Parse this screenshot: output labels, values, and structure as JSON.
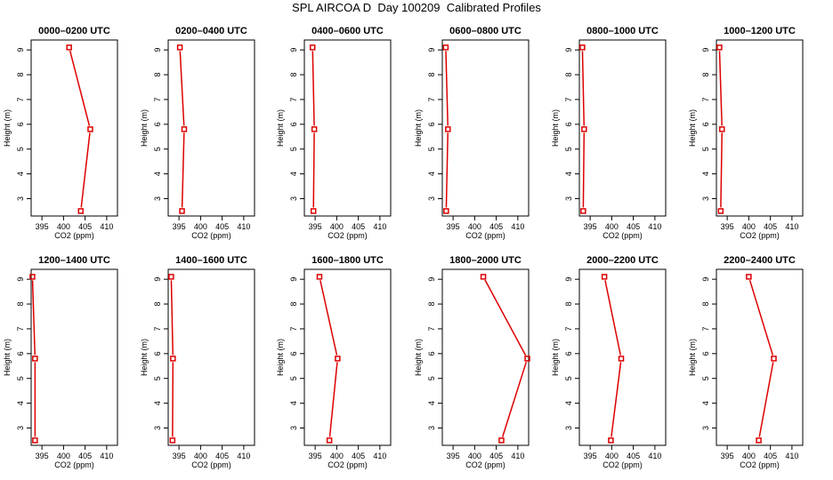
{
  "title": "SPL AIRCOA D  Day 100209  Calibrated Profiles",
  "colors": {
    "series": "#dd0000",
    "axis": "#000000"
  },
  "chart_data": [
    {
      "type": "line",
      "title": "0000–0200 UTC",
      "xlabel": "CO2 (ppm)",
      "ylabel": "Height (m)",
      "xlim": [
        392.5,
        412.5
      ],
      "ylim": [
        2.3,
        9.4
      ],
      "xticks": [
        395,
        400,
        405,
        410
      ],
      "yticks": [
        3,
        4,
        5,
        6,
        7,
        8,
        9
      ],
      "x": [
        401.3,
        406.2,
        404.0
      ],
      "y": [
        9.1,
        5.8,
        2.5
      ]
    },
    {
      "type": "line",
      "title": "0200–0400 UTC",
      "xlabel": "CO2 (ppm)",
      "ylabel": "Height (m)",
      "xlim": [
        392.5,
        412.5
      ],
      "ylim": [
        2.3,
        9.4
      ],
      "xticks": [
        395,
        400,
        405,
        410
      ],
      "yticks": [
        3,
        4,
        5,
        6,
        7,
        8,
        9
      ],
      "x": [
        395.2,
        396.2,
        395.7
      ],
      "y": [
        9.1,
        5.8,
        2.5
      ]
    },
    {
      "type": "line",
      "title": "0400–0600 UTC",
      "xlabel": "CO2 (ppm)",
      "ylabel": "Height (m)",
      "xlim": [
        392.5,
        412.5
      ],
      "ylim": [
        2.3,
        9.4
      ],
      "xticks": [
        395,
        400,
        405,
        410
      ],
      "yticks": [
        3,
        4,
        5,
        6,
        7,
        8,
        9
      ],
      "x": [
        394.4,
        394.8,
        394.6
      ],
      "y": [
        9.1,
        5.8,
        2.5
      ]
    },
    {
      "type": "line",
      "title": "0600–0800 UTC",
      "xlabel": "CO2 (ppm)",
      "ylabel": "Height (m)",
      "xlim": [
        392.5,
        412.5
      ],
      "ylim": [
        2.3,
        9.4
      ],
      "xticks": [
        395,
        400,
        405,
        410
      ],
      "yticks": [
        3,
        4,
        5,
        6,
        7,
        8,
        9
      ],
      "x": [
        393.3,
        393.8,
        393.4
      ],
      "y": [
        9.1,
        5.8,
        2.5
      ]
    },
    {
      "type": "line",
      "title": "0800–1000 UTC",
      "xlabel": "CO2 (ppm)",
      "ylabel": "Height (m)",
      "xlim": [
        392.5,
        412.5
      ],
      "ylim": [
        2.3,
        9.4
      ],
      "xticks": [
        395,
        400,
        405,
        410
      ],
      "yticks": [
        3,
        4,
        5,
        6,
        7,
        8,
        9
      ],
      "x": [
        393.2,
        393.6,
        393.4
      ],
      "y": [
        9.1,
        5.8,
        2.5
      ]
    },
    {
      "type": "line",
      "title": "1000–1200 UTC",
      "xlabel": "CO2 (ppm)",
      "ylabel": "Height (m)",
      "xlim": [
        392.5,
        412.5
      ],
      "ylim": [
        2.3,
        9.4
      ],
      "xticks": [
        395,
        400,
        405,
        410
      ],
      "yticks": [
        3,
        4,
        5,
        6,
        7,
        8,
        9
      ],
      "x": [
        393.2,
        393.8,
        393.5
      ],
      "y": [
        9.1,
        5.8,
        2.5
      ]
    },
    {
      "type": "line",
      "title": "1200–1400 UTC",
      "xlabel": "CO2 (ppm)",
      "ylabel": "Height (m)",
      "xlim": [
        392.5,
        412.5
      ],
      "ylim": [
        2.3,
        9.4
      ],
      "xticks": [
        395,
        400,
        405,
        410
      ],
      "yticks": [
        3,
        4,
        5,
        6,
        7,
        8,
        9
      ],
      "x": [
        392.8,
        393.4,
        393.4
      ],
      "y": [
        9.1,
        5.8,
        2.5
      ]
    },
    {
      "type": "line",
      "title": "1400–1600 UTC",
      "xlabel": "CO2 (ppm)",
      "ylabel": "Height (m)",
      "xlim": [
        392.5,
        412.5
      ],
      "ylim": [
        2.3,
        9.4
      ],
      "xticks": [
        395,
        400,
        405,
        410
      ],
      "yticks": [
        3,
        4,
        5,
        6,
        7,
        8,
        9
      ],
      "x": [
        393.2,
        393.6,
        393.5
      ],
      "y": [
        9.1,
        5.8,
        2.5
      ]
    },
    {
      "type": "line",
      "title": "1600–1800 UTC",
      "xlabel": "CO2 (ppm)",
      "ylabel": "Height (m)",
      "xlim": [
        392.5,
        412.5
      ],
      "ylim": [
        2.3,
        9.4
      ],
      "xticks": [
        395,
        400,
        405,
        410
      ],
      "yticks": [
        3,
        4,
        5,
        6,
        7,
        8,
        9
      ],
      "x": [
        396.0,
        400.2,
        398.3
      ],
      "y": [
        9.1,
        5.8,
        2.5
      ]
    },
    {
      "type": "line",
      "title": "1800–2000 UTC",
      "xlabel": "CO2 (ppm)",
      "ylabel": "Height (m)",
      "xlim": [
        392.5,
        412.5
      ],
      "ylim": [
        2.3,
        9.4
      ],
      "xticks": [
        395,
        400,
        405,
        410
      ],
      "yticks": [
        3,
        4,
        5,
        6,
        7,
        8,
        9
      ],
      "x": [
        402.0,
        412.2,
        406.2
      ],
      "y": [
        9.1,
        5.8,
        2.5
      ]
    },
    {
      "type": "line",
      "title": "2000–2200 UTC",
      "xlabel": "CO2 (ppm)",
      "ylabel": "Height (m)",
      "xlim": [
        392.5,
        412.5
      ],
      "ylim": [
        2.3,
        9.4
      ],
      "xticks": [
        395,
        400,
        405,
        410
      ],
      "yticks": [
        3,
        4,
        5,
        6,
        7,
        8,
        9
      ],
      "x": [
        398.3,
        402.2,
        399.8
      ],
      "y": [
        9.1,
        5.8,
        2.5
      ]
    },
    {
      "type": "line",
      "title": "2200–2400 UTC",
      "xlabel": "CO2 (ppm)",
      "ylabel": "Height (m)",
      "xlim": [
        392.5,
        412.5
      ],
      "ylim": [
        2.3,
        9.4
      ],
      "xticks": [
        395,
        400,
        405,
        410
      ],
      "yticks": [
        3,
        4,
        5,
        6,
        7,
        8,
        9
      ],
      "x": [
        400.0,
        405.8,
        402.3
      ],
      "y": [
        9.1,
        5.8,
        2.5
      ]
    }
  ]
}
